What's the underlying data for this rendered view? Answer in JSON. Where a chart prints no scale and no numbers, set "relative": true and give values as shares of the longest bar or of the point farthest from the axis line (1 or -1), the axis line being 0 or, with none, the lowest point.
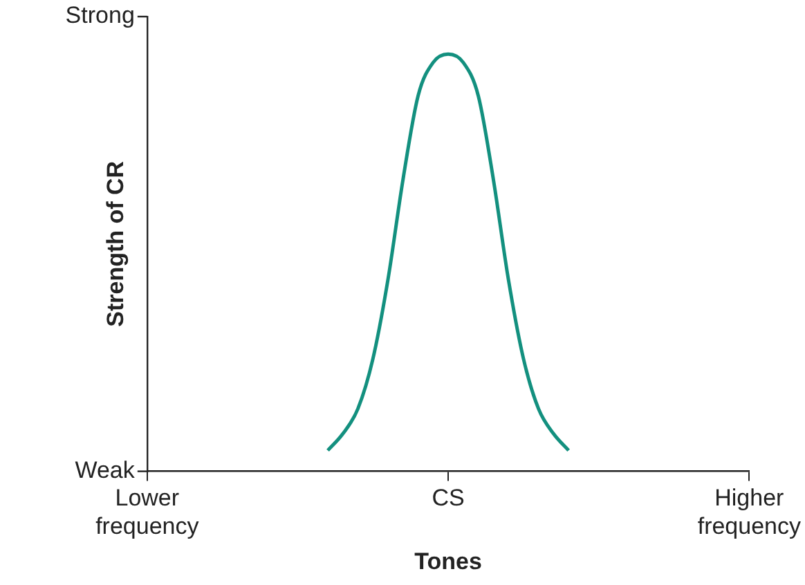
{
  "chart_data": {
    "type": "line",
    "xlabel": "Tones",
    "ylabel": "Strength of CR",
    "relative": true,
    "categories": [
      "Lower frequency",
      null,
      null,
      null,
      null,
      null,
      null,
      null,
      null,
      null,
      null,
      null,
      null,
      null,
      null,
      null,
      null,
      null,
      null,
      null,
      "CS",
      null,
      null,
      null,
      null,
      null,
      null,
      null,
      null,
      null,
      null,
      null,
      null,
      null,
      null,
      null,
      null,
      null,
      null,
      null,
      "Higher frequency"
    ],
    "series": [
      {
        "color": "#13907f",
        "values": [
          null,
          null,
          null,
          null,
          null,
          null,
          null,
          null,
          null,
          null,
          null,
          null,
          0.05,
          0.09,
          0.15,
          0.27,
          0.46,
          0.7,
          0.9,
          0.98,
          1,
          0.98,
          0.9,
          0.7,
          0.46,
          0.27,
          0.15,
          0.09,
          0.05,
          null,
          null,
          null,
          null,
          null,
          null,
          null,
          null,
          null,
          null,
          null,
          null
        ]
      }
    ],
    "annotations": [
      "Strong",
      "Weak"
    ],
    "grid": false,
    "legend": false,
    "marker": "none",
    "line_style": "solid"
  }
}
